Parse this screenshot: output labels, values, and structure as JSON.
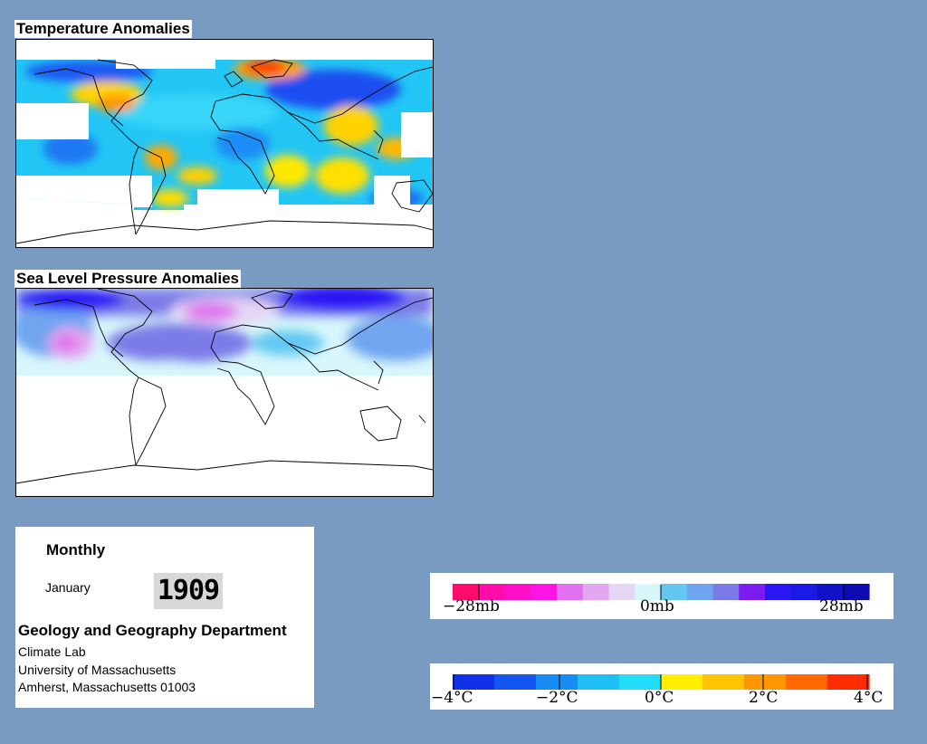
{
  "temperature_map": {
    "title": "Temperature Anomalies"
  },
  "pressure_map": {
    "title": "Sea Level Pressure Anomalies"
  },
  "info_panel": {
    "period": "Monthly",
    "month": "January",
    "year": "1909",
    "department": "Geology and Geography Department",
    "lab": "Climate Lab",
    "university": "University of Massachusetts",
    "address": "Amherst, Massachusetts 01003"
  },
  "pressure_legend": {
    "labels": [
      "−28mb",
      "0mb",
      "28mb"
    ],
    "colors": [
      "#ff0b6b",
      "#ff0da8",
      "#ff0fc8",
      "#ff14e4",
      "#e070ee",
      "#e3a6f0",
      "#e6d6f6",
      "#d8f7fb",
      "#62c8f2",
      "#6fa5f0",
      "#7b7be8",
      "#7a1cf2",
      "#2a18f4",
      "#1a1ae6",
      "#1212c9",
      "#0c0cb0"
    ]
  },
  "temperature_legend": {
    "labels": [
      "−4°C",
      "−2°C",
      "0°C",
      "2°C",
      "4°C"
    ],
    "colors": [
      "#1131e8",
      "#1455f2",
      "#188cf5",
      "#1fbef6",
      "#22dcf8",
      "#ffef00",
      "#ffc400",
      "#ff9800",
      "#ff6a00",
      "#ff2c00"
    ]
  }
}
